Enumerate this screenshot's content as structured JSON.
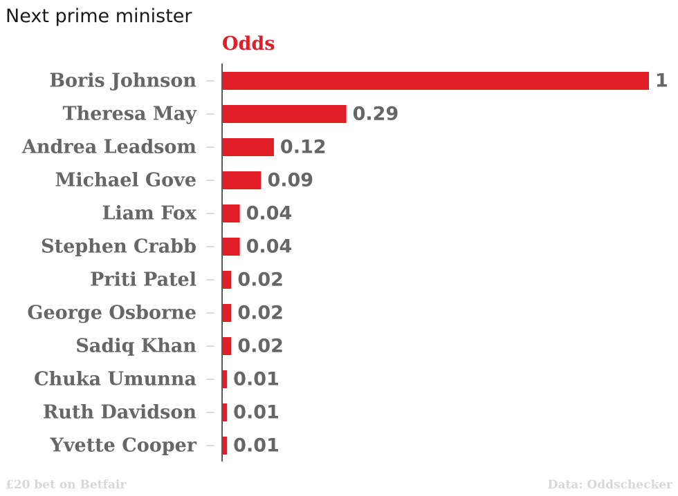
{
  "title": "Next prime minister",
  "footer": {
    "left": "£20 bet on Betfair",
    "right": "Data: Oddschecker"
  },
  "colors": {
    "bar": "#e01e27",
    "label": "#666666",
    "axis": "#222222",
    "tick": "#cccccc",
    "footer": "#d8d8d8"
  },
  "chart_data": {
    "type": "bar",
    "orientation": "horizontal",
    "title": "Next prime minister",
    "categories": [
      "Boris Johnson",
      "Theresa May",
      "Andrea Leadsom",
      "Michael Gove",
      "Liam Fox",
      "Stephen Crabb",
      "Priti Patel",
      "George Osborne",
      "Sadiq Khan",
      "Chuka Umunna",
      "Ruth Davidson",
      "Yvette Cooper"
    ],
    "series": [
      {
        "name": "Odds",
        "values": [
          1,
          0.29,
          0.12,
          0.09,
          0.04,
          0.04,
          0.02,
          0.02,
          0.02,
          0.01,
          0.01,
          0.01
        ],
        "labels": [
          "1",
          "0.29",
          "0.12",
          "0.09",
          "0.04",
          "0.04",
          "0.02",
          "0.02",
          "0.02",
          "0.01",
          "0.01",
          "0.01"
        ]
      }
    ],
    "xlim": [
      0,
      1
    ],
    "grid": false,
    "legend": "none"
  }
}
